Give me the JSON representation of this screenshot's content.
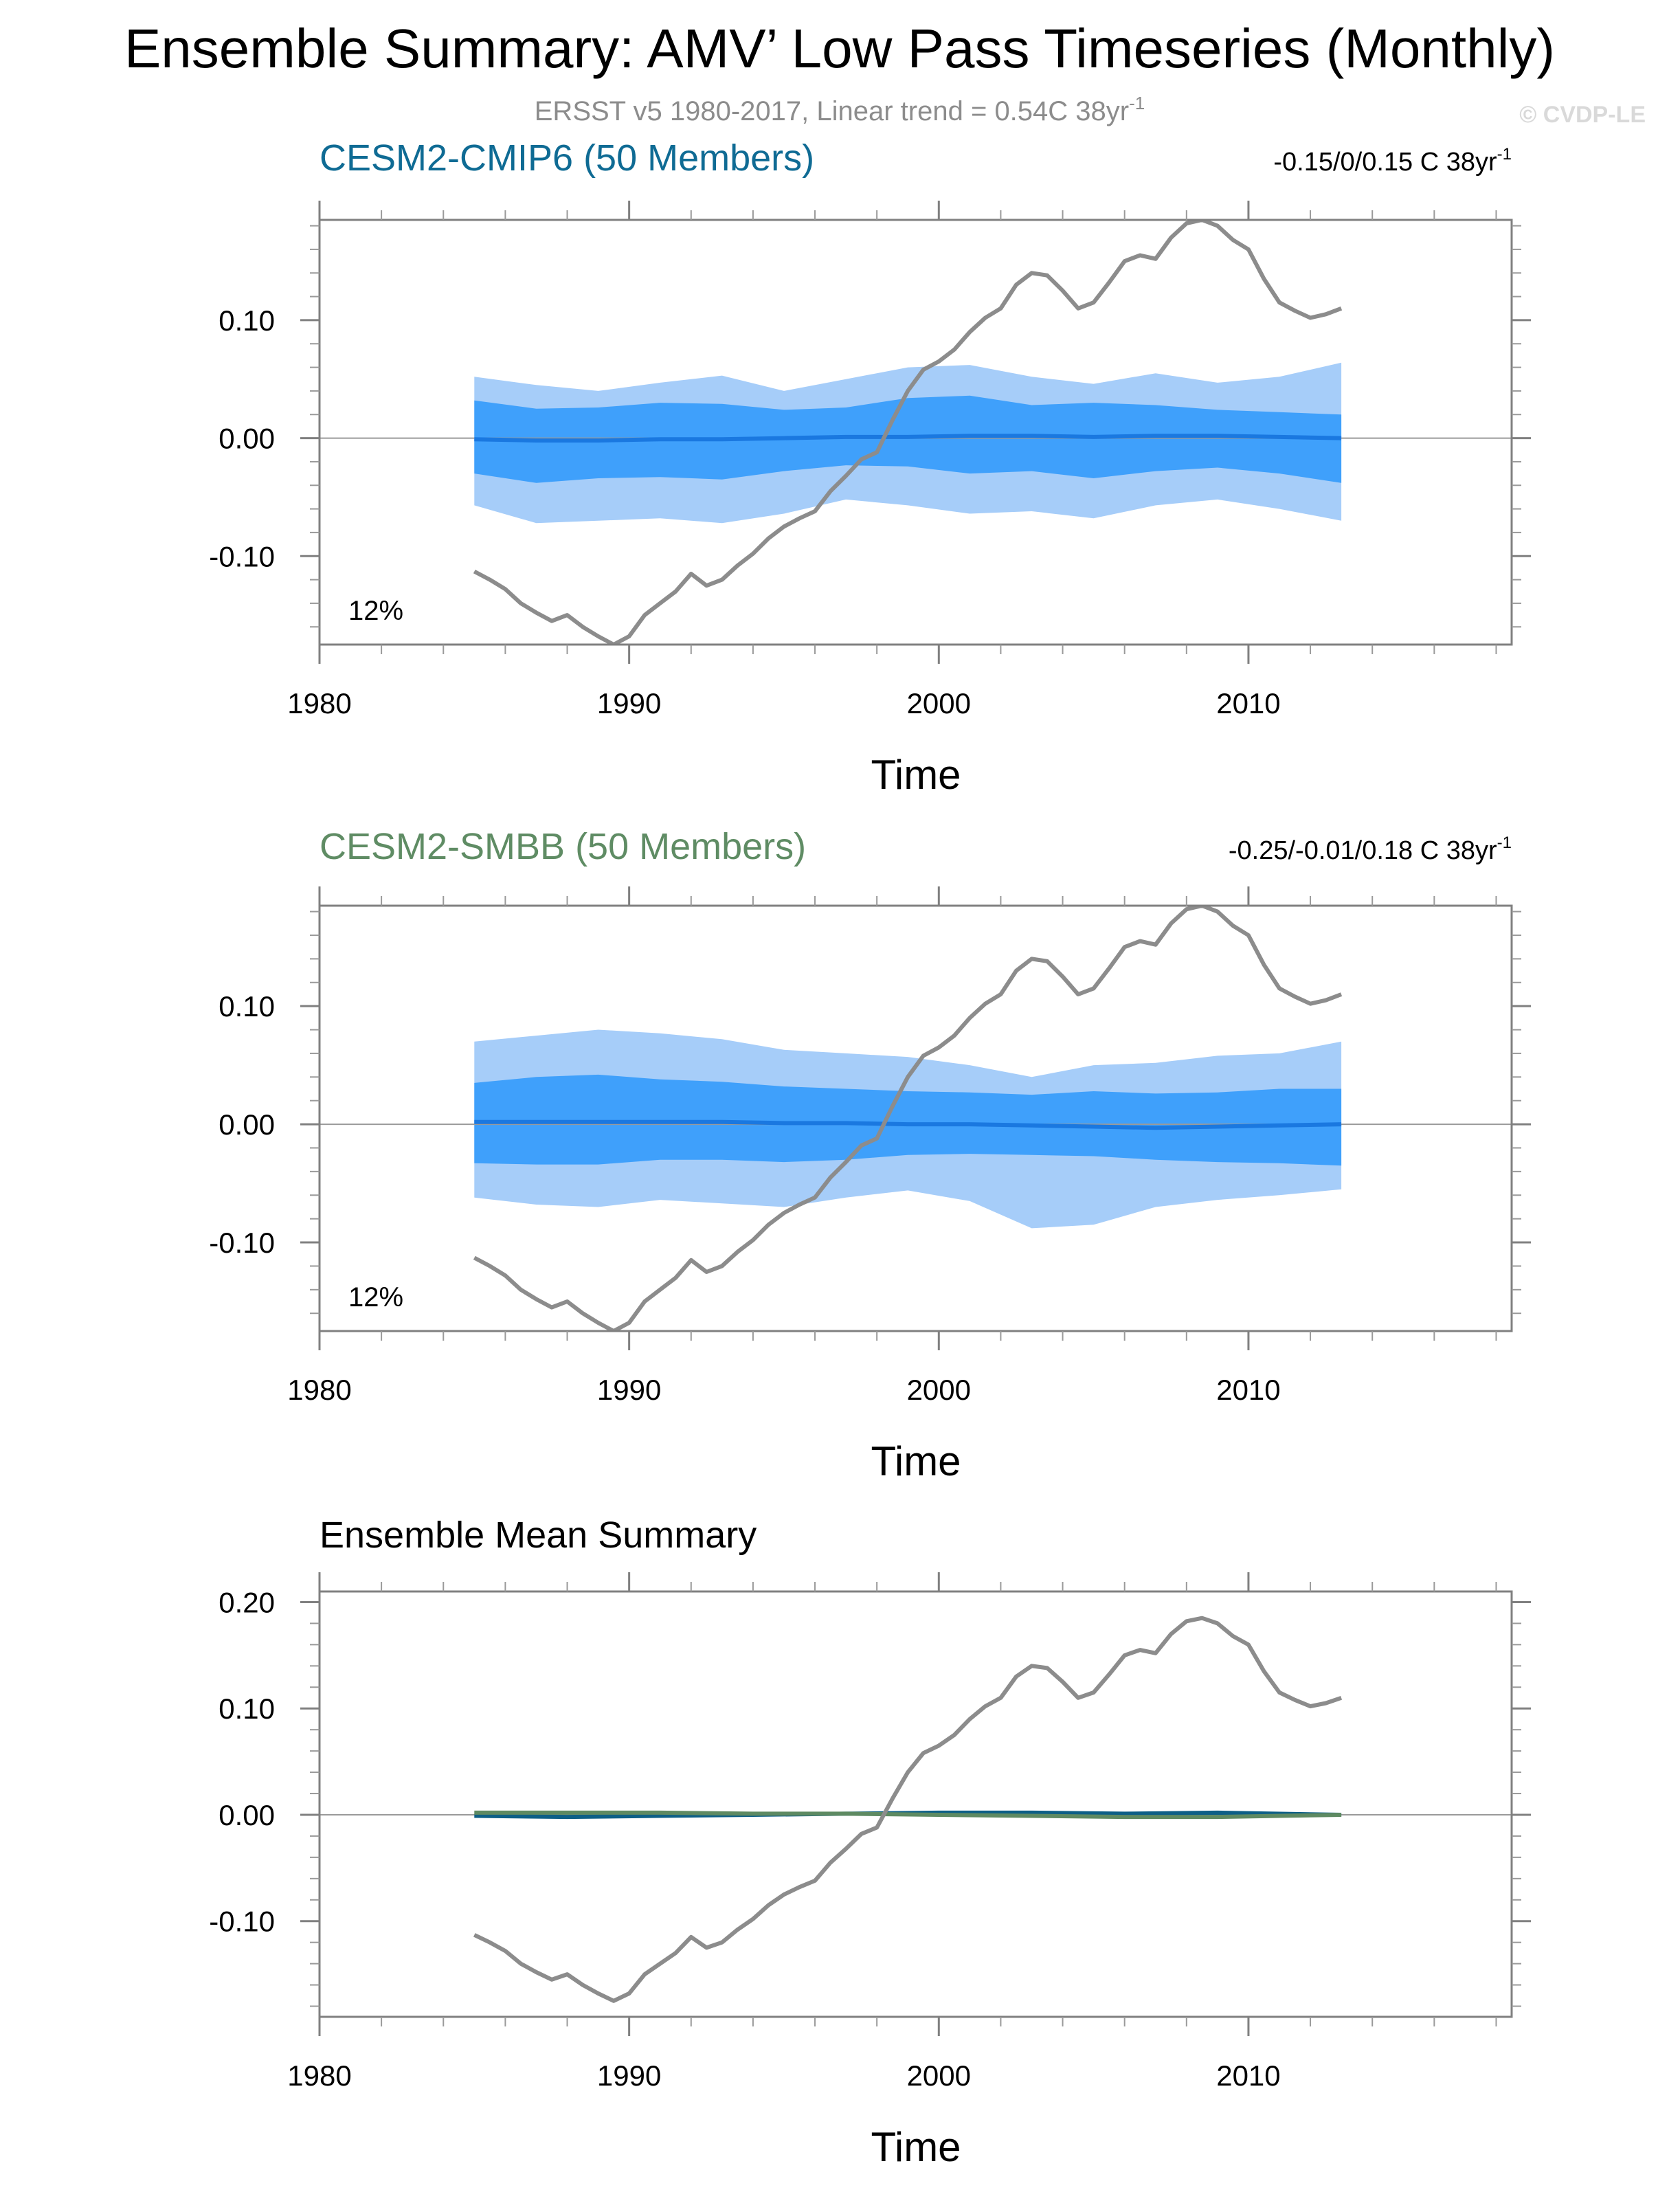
{
  "figure": {
    "title": "Ensemble Summary: AMV’ Low Pass Timeseries (Monthly)",
    "subtitle": "ERSST v5 1980-2017, Linear trend = 0.54C 38yr",
    "subtitle_sup": "-1",
    "copyright": "© CVDP-LE"
  },
  "colors": {
    "outer_band": "#a6cdf9",
    "inner_band": "#3fa0fb",
    "ens_mean": "#1a78e0",
    "observed": "#8c8c8c",
    "cmip6_title": "#0f6b94",
    "smbb_title": "#5f8c64",
    "summary_title": "#000000",
    "cmip6_mean": "#0d5f86",
    "smbb_mean": "#5e8a62"
  },
  "chart_data": [
    {
      "type": "area",
      "title": "CESM2-CMIP6 (50 Members)",
      "trend_label": "-0.15/0/0.15 C 38yr",
      "trend_sup": "-1",
      "percent_label": "12%",
      "xlabel": "Time",
      "xlim": [
        1980,
        2018.5
      ],
      "ylim": [
        -0.175,
        0.185
      ],
      "x_ticks": [
        "1980",
        "1990",
        "2000",
        "2010"
      ],
      "y_ticks": [
        "0.10",
        "0.00",
        "-0.10"
      ],
      "x": [
        1985,
        1987,
        1989,
        1991,
        1993,
        1995,
        1997,
        1999,
        2001,
        2003,
        2005,
        2007,
        2009,
        2011,
        2013
      ],
      "outer_upper": [
        0.052,
        0.045,
        0.04,
        0.047,
        0.053,
        0.04,
        0.05,
        0.06,
        0.062,
        0.052,
        0.046,
        0.055,
        0.047,
        0.052,
        0.064
      ],
      "outer_lower": [
        -0.057,
        -0.072,
        -0.07,
        -0.068,
        -0.072,
        -0.064,
        -0.052,
        -0.057,
        -0.064,
        -0.062,
        -0.068,
        -0.057,
        -0.052,
        -0.06,
        -0.07
      ],
      "inner_upper": [
        0.032,
        0.025,
        0.026,
        0.03,
        0.029,
        0.024,
        0.026,
        0.034,
        0.036,
        0.028,
        0.03,
        0.028,
        0.024,
        0.022,
        0.02
      ],
      "inner_lower": [
        -0.03,
        -0.038,
        -0.034,
        -0.033,
        -0.035,
        -0.028,
        -0.023,
        -0.024,
        -0.03,
        -0.028,
        -0.034,
        -0.028,
        -0.025,
        -0.03,
        -0.038
      ],
      "ens_mean": [
        -0.001,
        -0.002,
        -0.002,
        -0.001,
        -0.001,
        0.0,
        0.001,
        0.001,
        0.002,
        0.002,
        0.001,
        0.002,
        0.002,
        0.001,
        0.0
      ]
    },
    {
      "type": "area",
      "title": "CESM2-SMBB (50 Members)",
      "trend_label": "-0.25/-0.01/0.18 C 38yr",
      "trend_sup": "-1",
      "percent_label": "12%",
      "xlabel": "Time",
      "xlim": [
        1980,
        2018.5
      ],
      "ylim": [
        -0.175,
        0.185
      ],
      "x_ticks": [
        "1980",
        "1990",
        "2000",
        "2010"
      ],
      "y_ticks": [
        "0.10",
        "0.00",
        "-0.10"
      ],
      "x": [
        1985,
        1987,
        1989,
        1991,
        1993,
        1995,
        1997,
        1999,
        2001,
        2003,
        2005,
        2007,
        2009,
        2011,
        2013
      ],
      "outer_upper": [
        0.07,
        0.075,
        0.08,
        0.077,
        0.072,
        0.063,
        0.06,
        0.057,
        0.05,
        0.04,
        0.05,
        0.052,
        0.058,
        0.06,
        0.07
      ],
      "outer_lower": [
        -0.062,
        -0.068,
        -0.07,
        -0.064,
        -0.067,
        -0.07,
        -0.062,
        -0.056,
        -0.065,
        -0.088,
        -0.085,
        -0.07,
        -0.064,
        -0.06,
        -0.055
      ],
      "inner_upper": [
        0.035,
        0.04,
        0.042,
        0.038,
        0.036,
        0.032,
        0.03,
        0.028,
        0.027,
        0.025,
        0.028,
        0.026,
        0.027,
        0.03,
        0.03
      ],
      "inner_lower": [
        -0.033,
        -0.034,
        -0.034,
        -0.03,
        -0.03,
        -0.032,
        -0.03,
        -0.026,
        -0.025,
        -0.026,
        -0.027,
        -0.03,
        -0.032,
        -0.033,
        -0.035
      ],
      "ens_mean": [
        0.002,
        0.002,
        0.002,
        0.002,
        0.002,
        0.001,
        0.001,
        0.0,
        0.0,
        -0.001,
        -0.002,
        -0.003,
        -0.002,
        -0.001,
        0.0
      ]
    },
    {
      "type": "line",
      "title": "Ensemble Mean Summary",
      "xlabel": "Time",
      "xlim": [
        1980,
        2018.5
      ],
      "ylim": [
        -0.19,
        0.21
      ],
      "x_ticks": [
        "1980",
        "1990",
        "2000",
        "2010"
      ],
      "y_ticks": [
        "0.20",
        "0.10",
        "0.00",
        "-0.10"
      ],
      "series": [
        {
          "name": "CESM2-CMIP6",
          "x": [
            1985,
            1988,
            1991,
            1994,
            1997,
            2000,
            2003,
            2006,
            2009,
            2013
          ],
          "values": [
            -0.001,
            -0.002,
            -0.001,
            0.0,
            0.001,
            0.002,
            0.002,
            0.001,
            0.002,
            0.0
          ]
        },
        {
          "name": "CESM2-SMBB",
          "x": [
            1985,
            1988,
            1991,
            1994,
            1997,
            2000,
            2003,
            2006,
            2009,
            2013
          ],
          "values": [
            0.002,
            0.002,
            0.002,
            0.001,
            0.001,
            0.0,
            -0.001,
            -0.002,
            -0.002,
            0.0
          ]
        }
      ]
    }
  ],
  "observed_series": {
    "name": "ERSST v5",
    "x": [
      1985.0,
      1985.5,
      1986.0,
      1986.5,
      1987.0,
      1987.5,
      1988.0,
      1988.5,
      1989.0,
      1989.5,
      1990.0,
      1990.5,
      1991.0,
      1991.5,
      1992.0,
      1992.5,
      1993.0,
      1993.5,
      1994.0,
      1994.5,
      1995.0,
      1995.5,
      1996.0,
      1996.5,
      1997.0,
      1997.5,
      1998.0,
      1998.5,
      1999.0,
      1999.5,
      2000.0,
      2000.5,
      2001.0,
      2001.5,
      2002.0,
      2002.5,
      2003.0,
      2003.5,
      2004.0,
      2004.5,
      2005.0,
      2005.5,
      2006.0,
      2006.5,
      2007.0,
      2007.5,
      2008.0,
      2008.5,
      2009.0,
      2009.5,
      2010.0,
      2010.5,
      2011.0,
      2011.5,
      2012.0,
      2012.5,
      2013.0
    ],
    "values": [
      -0.113,
      -0.12,
      -0.128,
      -0.14,
      -0.148,
      -0.155,
      -0.15,
      -0.16,
      -0.168,
      -0.175,
      -0.168,
      -0.15,
      -0.14,
      -0.13,
      -0.115,
      -0.125,
      -0.12,
      -0.108,
      -0.098,
      -0.085,
      -0.075,
      -0.068,
      -0.062,
      -0.045,
      -0.032,
      -0.018,
      -0.012,
      0.015,
      0.04,
      0.058,
      0.065,
      0.075,
      0.09,
      0.102,
      0.11,
      0.13,
      0.14,
      0.138,
      0.125,
      0.11,
      0.115,
      0.132,
      0.15,
      0.155,
      0.152,
      0.17,
      0.182,
      0.185,
      0.18,
      0.168,
      0.16,
      0.135,
      0.115,
      0.108,
      0.102,
      0.105,
      0.11
    ]
  }
}
